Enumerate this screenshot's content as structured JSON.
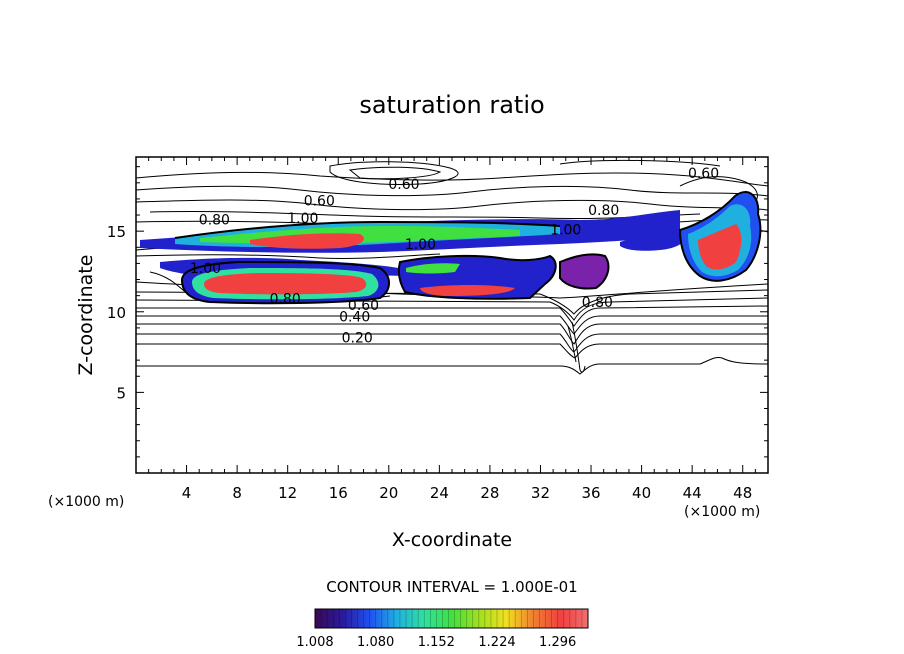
{
  "chart_data": {
    "type": "contour",
    "title": "saturation ratio",
    "xlabel": "X-coordinate",
    "ylabel": "Z-coordinate",
    "x_unit": "(×1000 m)",
    "z_unit": "(×1000 m)",
    "xlim": [
      0,
      50
    ],
    "ylim": [
      0,
      19.6
    ],
    "x_ticks": [
      4,
      8,
      12,
      16,
      20,
      24,
      28,
      32,
      36,
      40,
      44,
      48
    ],
    "y_ticks": [
      5,
      10,
      15
    ],
    "contour_interval_text": "CONTOUR INTERVAL = 1.000E-01",
    "contour_labels": [
      {
        "text": "0.60",
        "x": 14.5,
        "z": 16.6
      },
      {
        "text": "0.60",
        "x": 21.2,
        "z": 17.6
      },
      {
        "text": "0.60",
        "x": 44.9,
        "z": 18.3
      },
      {
        "text": "0.80",
        "x": 6.2,
        "z": 15.4
      },
      {
        "text": "1.00",
        "x": 13.2,
        "z": 15.5
      },
      {
        "text": "0.80",
        "x": 37.0,
        "z": 16.0
      },
      {
        "text": "1.00",
        "x": 34.0,
        "z": 14.8
      },
      {
        "text": "1.00",
        "x": 22.5,
        "z": 13.9
      },
      {
        "text": "1.00",
        "x": 5.5,
        "z": 12.4
      },
      {
        "text": "0.80",
        "x": 11.8,
        "z": 10.5
      },
      {
        "text": "0.60",
        "x": 18.0,
        "z": 10.1
      },
      {
        "text": "0.40",
        "x": 17.3,
        "z": 9.4
      },
      {
        "text": "0.20",
        "x": 17.5,
        "z": 8.1
      },
      {
        "text": "0.80",
        "x": 36.5,
        "z": 10.3
      }
    ],
    "colorbar": {
      "tick_labels": [
        "1.008",
        "1.080",
        "1.152",
        "1.224",
        "1.296"
      ],
      "range": [
        1.008,
        1.332
      ],
      "colors": [
        "#3a0a55",
        "#2a1a9a",
        "#2050f0",
        "#20b0e0",
        "#30e0a0",
        "#40e040",
        "#a0e020",
        "#f0e020",
        "#f08030",
        "#f04040",
        "#f07070"
      ]
    }
  }
}
